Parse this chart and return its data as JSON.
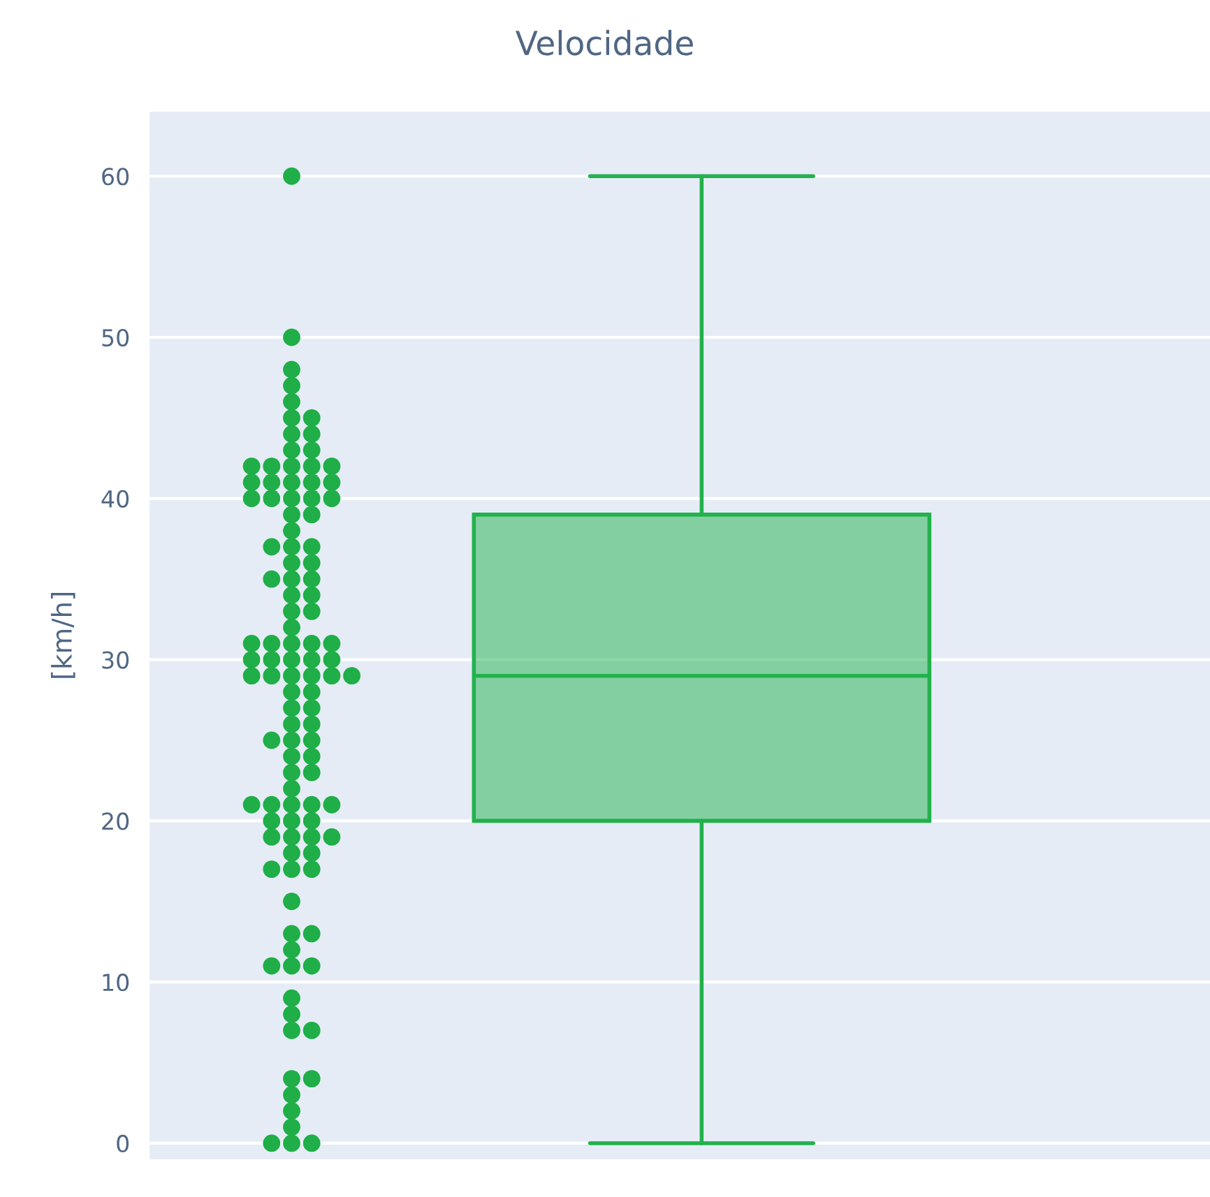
{
  "chart_data": {
    "type": "box",
    "title": "Velocidade",
    "ylabel": "[km/h]",
    "categories": [
      null
    ],
    "ylim": [
      -1,
      64
    ],
    "yticks": [
      0,
      10,
      20,
      30,
      40,
      50,
      60
    ],
    "tick_labels": "y",
    "grid": "y",
    "series": [
      {
        "color": "#22b14c",
        "boxes": [
          {
            "low": 0,
            "q1": 20,
            "median": 29,
            "q3": 39,
            "high": 60
          }
        ]
      },
      {
        "type": "scatter",
        "color": "#1fae47",
        "marker": "circle",
        "x": [
          null,
          null,
          null,
          null,
          null,
          null,
          null,
          null,
          null,
          null,
          null,
          null,
          null,
          null,
          null,
          null,
          null,
          null,
          null,
          null,
          null,
          null,
          null,
          null,
          null,
          null,
          null,
          null,
          null,
          null,
          null,
          null,
          null,
          null,
          null,
          null,
          null,
          null,
          null,
          null,
          null,
          null,
          null,
          null,
          null,
          null,
          null,
          null,
          null,
          null,
          null,
          null,
          null,
          null,
          null,
          null,
          null,
          null,
          null,
          null,
          null,
          null,
          null,
          null,
          null,
          null,
          null,
          null,
          null,
          null,
          null,
          null,
          null,
          null,
          null,
          null,
          null,
          null,
          null,
          null,
          null,
          null,
          null,
          null,
          null,
          null,
          null,
          null,
          null,
          null,
          null,
          null,
          null,
          null,
          null,
          null,
          null,
          null,
          null,
          null,
          null,
          null,
          null,
          null,
          null,
          null,
          null,
          null
        ],
        "values": [
          60,
          50,
          48,
          47,
          46,
          45,
          45,
          44,
          44,
          43,
          43,
          42,
          42,
          42,
          42,
          42,
          41,
          41,
          41,
          41,
          41,
          40,
          40,
          40,
          40,
          40,
          39,
          39,
          38,
          37,
          37,
          37,
          36,
          36,
          35,
          35,
          35,
          34,
          34,
          33,
          33,
          32,
          31,
          31,
          31,
          31,
          31,
          30,
          30,
          30,
          30,
          30,
          29,
          29,
          29,
          29,
          29,
          29,
          28,
          28,
          27,
          27,
          26,
          26,
          25,
          25,
          25,
          24,
          24,
          23,
          23,
          22,
          21,
          21,
          21,
          21,
          21,
          20,
          20,
          20,
          19,
          19,
          19,
          19,
          18,
          18,
          17,
          17,
          17,
          15,
          13,
          13,
          12,
          11,
          11,
          11,
          9,
          8,
          7,
          7,
          4,
          4,
          3,
          2,
          1,
          0,
          0,
          0
        ]
      }
    ]
  }
}
